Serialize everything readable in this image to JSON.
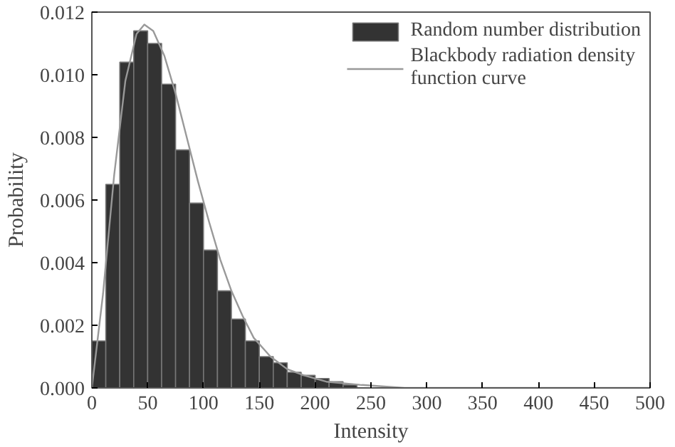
{
  "chart_data": {
    "type": "histogram",
    "xlabel": "Intensity",
    "ylabel": "Probability",
    "bins": [
      0,
      12.5,
      25,
      37.5,
      50,
      62.5,
      75,
      87.5,
      100,
      112.5,
      125,
      137.5,
      150,
      162.5,
      175,
      187.5,
      200,
      212.5,
      225,
      237.5,
      250
    ],
    "series": [
      {
        "name": "Random number distribution",
        "color": "#333333",
        "values": [
          0.0015,
          0.0065,
          0.0104,
          0.0114,
          0.011,
          0.0097,
          0.0076,
          0.0059,
          0.0044,
          0.0031,
          0.0022,
          0.0015,
          0.001,
          0.0008,
          0.0005,
          0.0004,
          0.0003,
          0.0002,
          0.0001,
          null
        ]
      },
      {
        "name": "Blackbody radiation density\nfunction curve",
        "type": "line",
        "color": "#999999",
        "x": [
          0,
          10,
          20,
          30,
          40,
          47,
          55,
          65,
          75,
          85,
          95,
          105,
          115,
          125,
          135,
          145,
          160,
          175,
          190,
          210,
          240,
          280,
          500
        ],
        "values": [
          0,
          0.003,
          0.0068,
          0.0098,
          0.0113,
          0.0116,
          0.0114,
          0.0106,
          0.0094,
          0.008,
          0.0066,
          0.0053,
          0.0041,
          0.0031,
          0.0023,
          0.0016,
          0.001,
          0.0006,
          0.0004,
          0.0002,
          0.0001,
          0,
          0
        ]
      }
    ],
    "xlim": [
      0,
      500
    ],
    "xticks": [
      0,
      50,
      100,
      150,
      200,
      250,
      300,
      350,
      400,
      450,
      500
    ],
    "ylim": [
      0,
      0.012
    ],
    "yticks": [
      {
        "value": 0,
        "label": "0.000"
      },
      {
        "value": 0.002,
        "label": "0.002"
      },
      {
        "value": 0.004,
        "label": "0.004"
      },
      {
        "value": 0.006,
        "label": "0.006"
      },
      {
        "value": 0.008,
        "label": "0.008"
      },
      {
        "value": 0.01,
        "label": "0.010"
      },
      {
        "value": 0.012,
        "label": "0.012"
      }
    ],
    "grid": false,
    "legend": "top right"
  }
}
